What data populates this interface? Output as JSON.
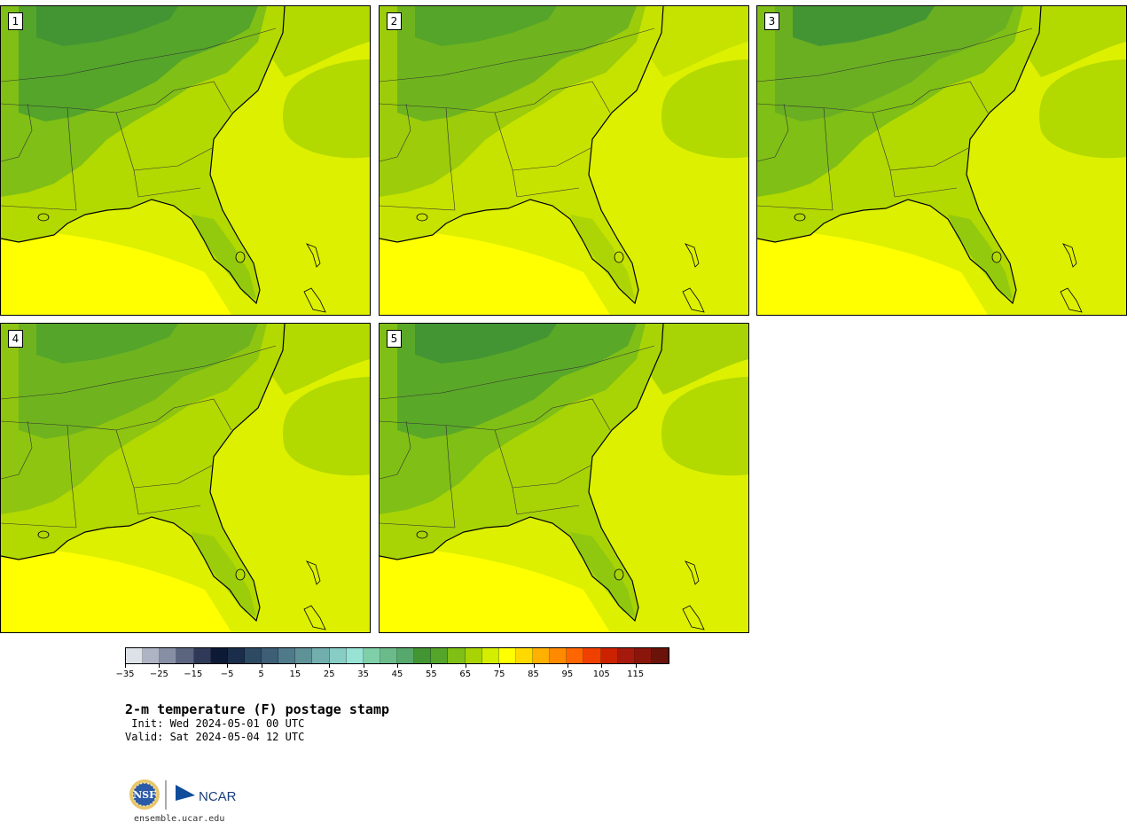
{
  "panels": [
    {
      "number": "1"
    },
    {
      "number": "2"
    },
    {
      "number": "3"
    },
    {
      "number": "4"
    },
    {
      "number": "5"
    }
  ],
  "colorbar": {
    "colors": [
      "#dde2e8",
      "#aeb4c4",
      "#868fa4",
      "#5b6580",
      "#2e3a57",
      "#0d1a35",
      "#1a2d4a",
      "#2d4a63",
      "#3e5e76",
      "#4f7a89",
      "#5f9297",
      "#72aeae",
      "#88ccc6",
      "#98e3d3",
      "#7fcfa8",
      "#6bbb8a",
      "#57a86c",
      "#439533",
      "#54a52a",
      "#7fbf16",
      "#a8d406",
      "#d4ee00",
      "#ffff00",
      "#ffd900",
      "#ffb000",
      "#ff8a00",
      "#ff6500",
      "#f04000",
      "#cc2200",
      "#a51a0d",
      "#8a150b",
      "#6b120b"
    ],
    "tick_labels": [
      "−35",
      "−25",
      "−15",
      "−5",
      "5",
      "15",
      "25",
      "35",
      "45",
      "55",
      "65",
      "75",
      "85",
      "95",
      "105",
      "115"
    ]
  },
  "title": "2-m temperature (F) postage stamp",
  "init_line": " Init: Wed 2024-05-01 00 UTC",
  "valid_line": "Valid: Sat 2024-05-04 12 UTC",
  "site": "ensemble.ucar.edu",
  "logo": {
    "left_text": "NSF",
    "right_text": "NCAR"
  }
}
